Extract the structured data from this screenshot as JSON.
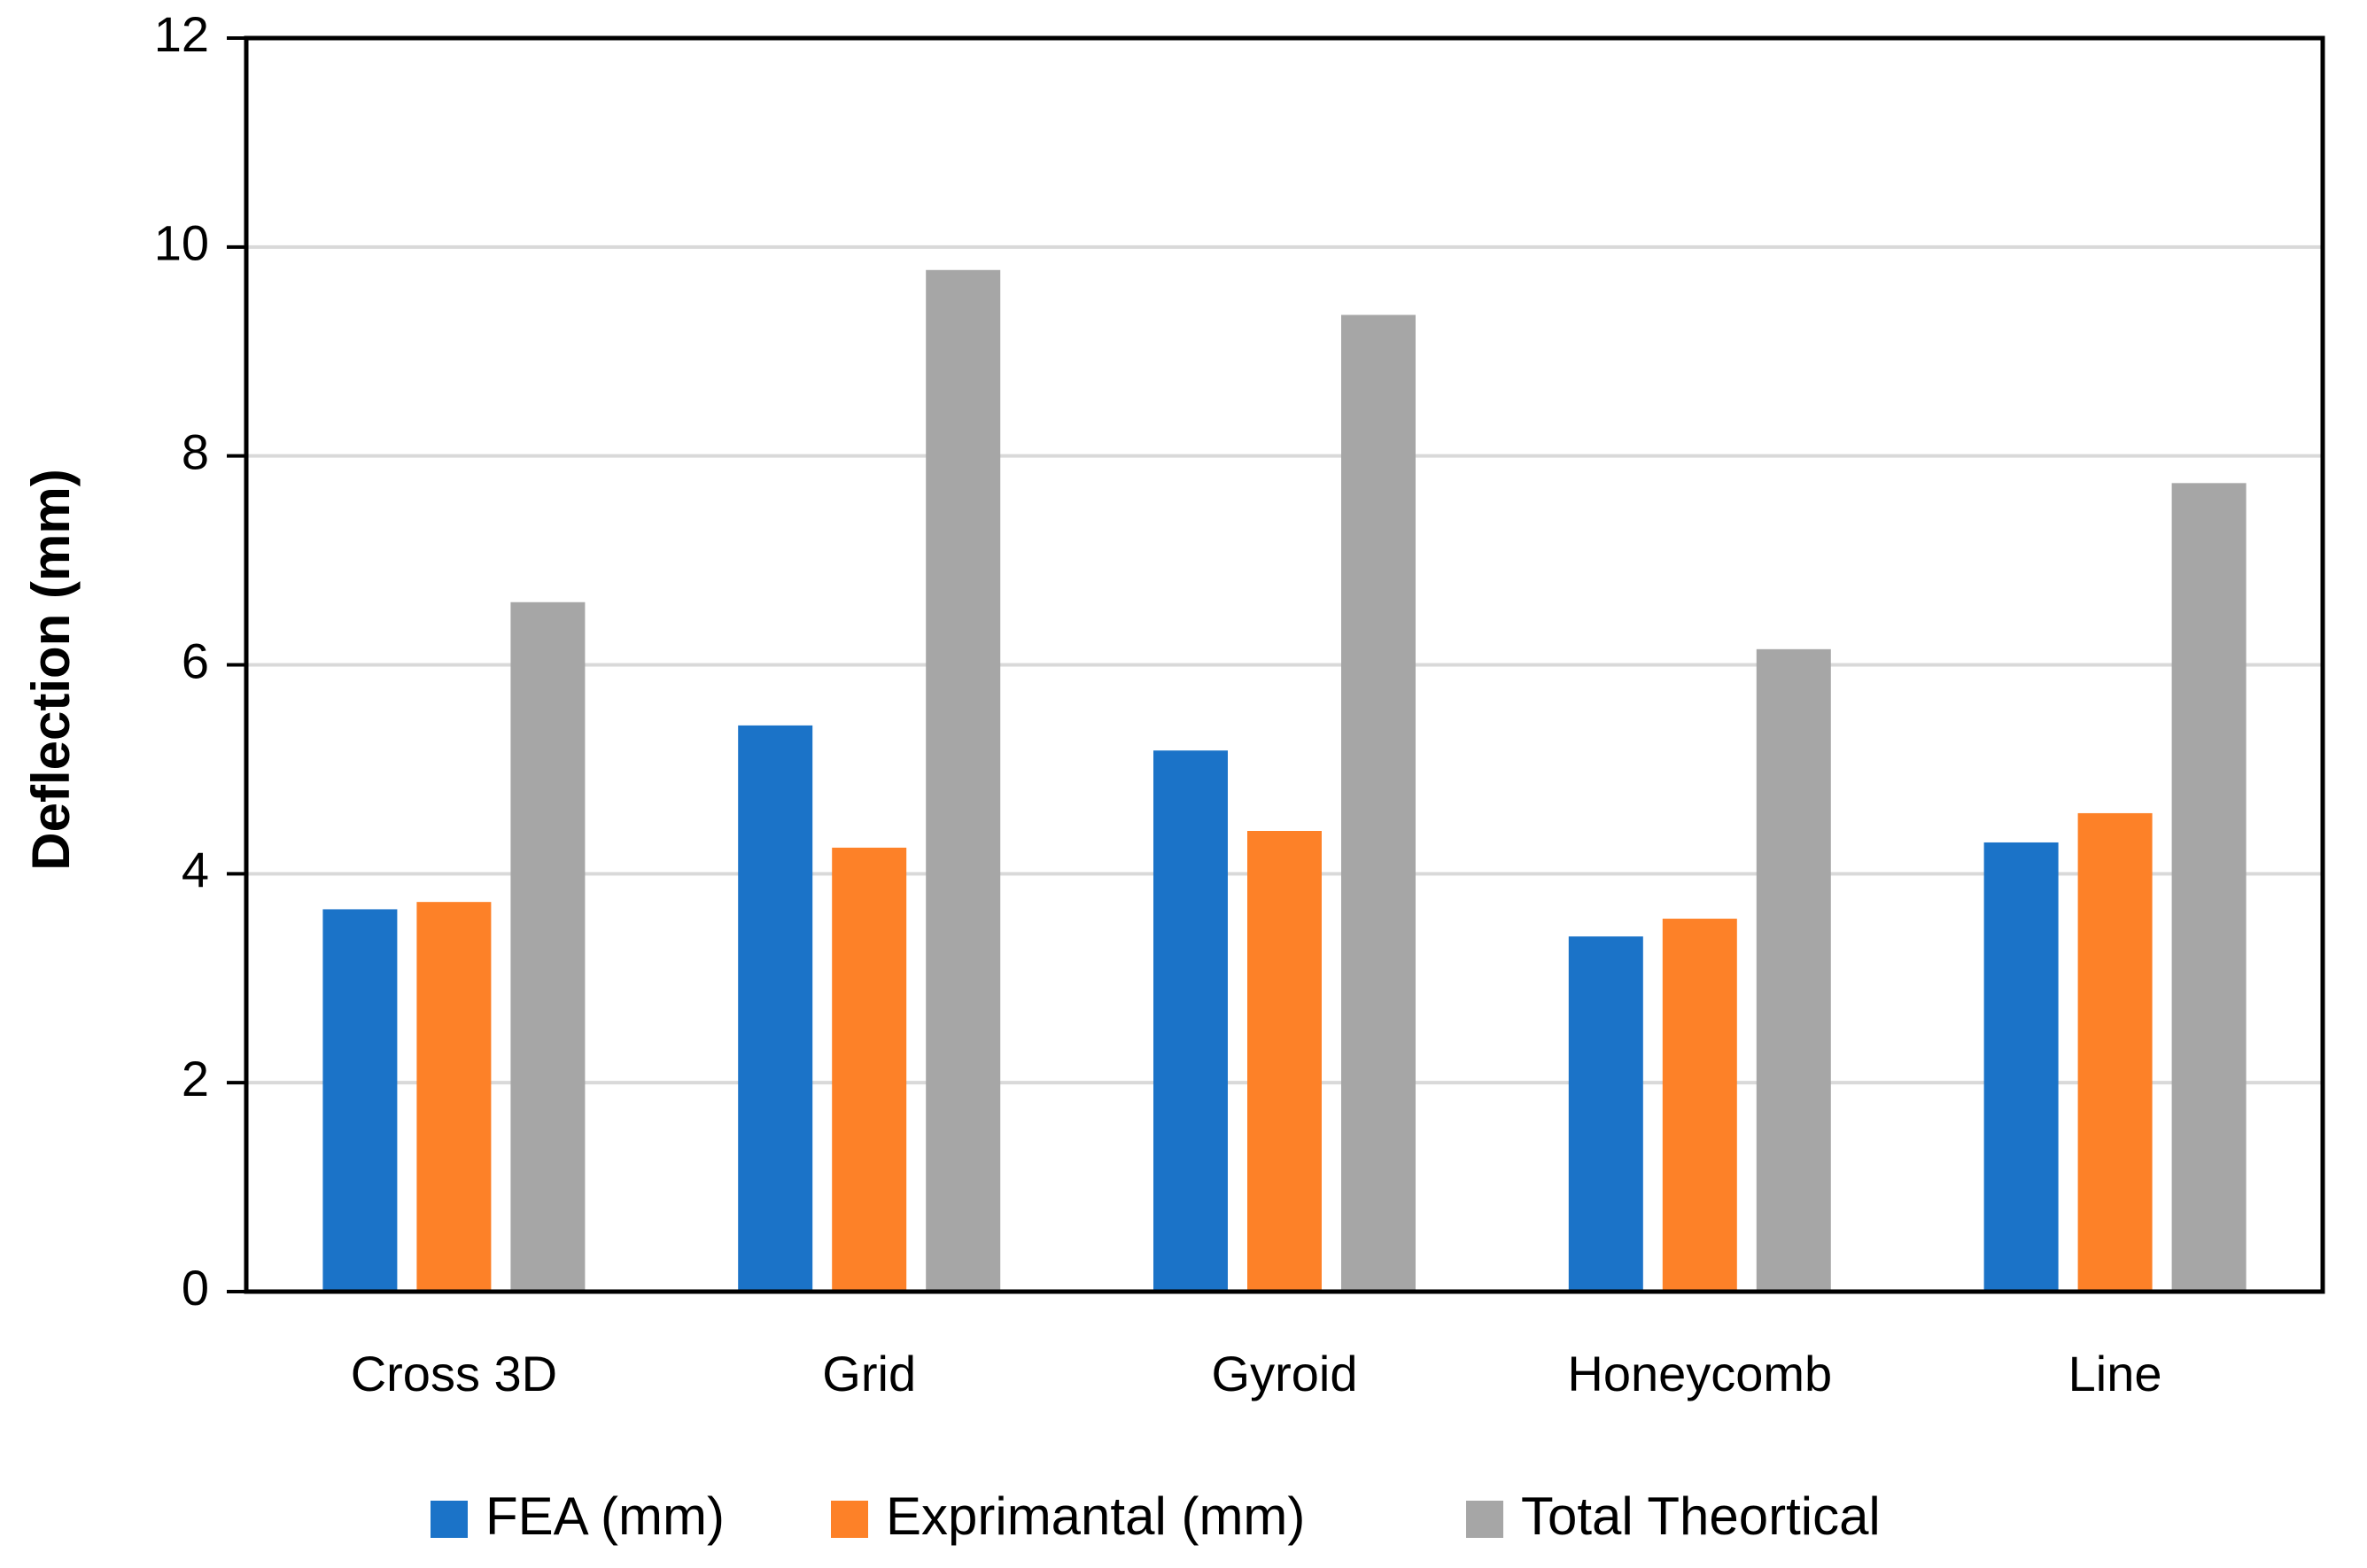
{
  "chart_data": {
    "type": "bar",
    "title": "",
    "xlabel": "",
    "ylabel": "Deflection (mm)",
    "ylim": [
      0,
      12
    ],
    "yticks": [
      0,
      2,
      4,
      6,
      8,
      10,
      12
    ],
    "grid": true,
    "legend_position": "bottom",
    "categories": [
      "Cross 3D",
      "Grid",
      "Gyroid",
      "Honeycomb",
      "Line"
    ],
    "series": [
      {
        "name": "FEA (mm)",
        "color": "#1B73C8",
        "values": [
          3.66,
          5.42,
          5.18,
          3.4,
          4.3
        ]
      },
      {
        "name": "Exprimantal (mm)",
        "color": "#FD8128",
        "values": [
          3.73,
          4.25,
          4.41,
          3.57,
          4.58
        ]
      },
      {
        "name": "Total Theortical",
        "color": "#A6A6A6",
        "values": [
          6.6,
          9.78,
          9.35,
          6.15,
          7.74
        ]
      }
    ]
  }
}
